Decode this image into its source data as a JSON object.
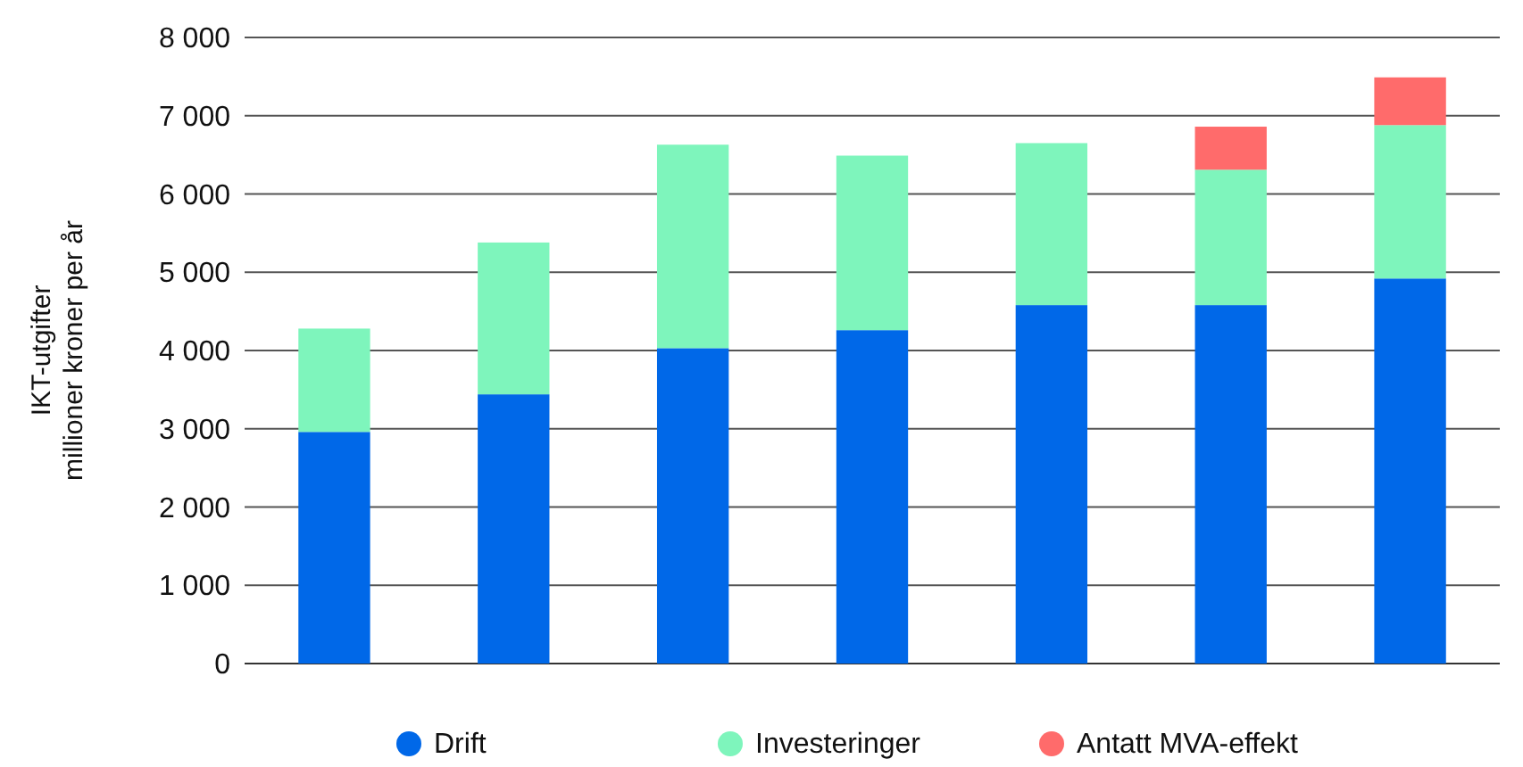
{
  "chart_data": {
    "type": "bar",
    "stacked": true,
    "ylabel": "IKT-utgifter\nmillioner kroner per år",
    "categories": [
      null,
      null,
      null,
      null,
      null,
      null,
      null
    ],
    "series": [
      {
        "name": "Drift",
        "color": "#0068e8",
        "values": [
          2960,
          3440,
          4030,
          4260,
          4580,
          4580,
          4920
        ]
      },
      {
        "name": "Investeringer",
        "color": "#7ef5bc",
        "values": [
          1320,
          1940,
          2600,
          2230,
          2070,
          1730,
          1960
        ]
      },
      {
        "name": "Antatt MVA-effekt",
        "color": "#ff6b6b",
        "values": [
          null,
          null,
          null,
          null,
          null,
          550,
          610
        ]
      }
    ],
    "ylim": [
      0,
      8000
    ],
    "yticks": [
      {
        "value": 0,
        "label": "0"
      },
      {
        "value": 1000,
        "label": "1 000"
      },
      {
        "value": 2000,
        "label": "2 000"
      },
      {
        "value": 3000,
        "label": "3 000"
      },
      {
        "value": 4000,
        "label": "4 000"
      },
      {
        "value": 5000,
        "label": "5 000"
      },
      {
        "value": 6000,
        "label": "6 000"
      },
      {
        "value": 7000,
        "label": "7 000"
      },
      {
        "value": 8000,
        "label": "8 000"
      }
    ],
    "grid": "y",
    "legend": "bottom"
  }
}
